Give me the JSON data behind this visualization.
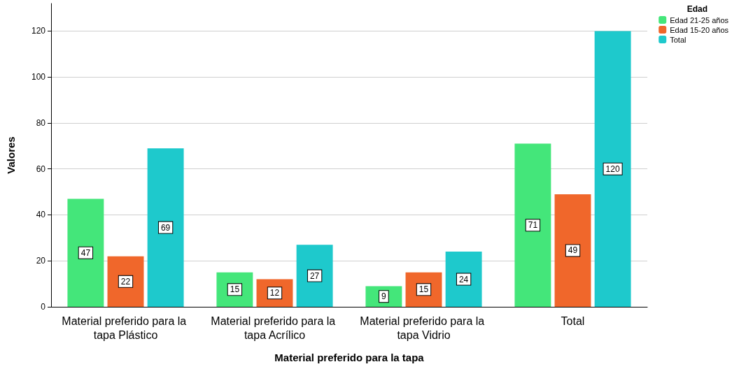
{
  "chart_data": {
    "type": "bar",
    "xlabel": "Material preferido para la tapa",
    "ylabel": "Valores",
    "legend_title": "Edad",
    "categories": [
      "Material preferido para la tapa Plástico",
      "Material preferido para la tapa Acrílico",
      "Material preferido para la tapa Vidrio",
      "Total"
    ],
    "series": [
      {
        "name": "Edad 21-25 años",
        "color": "#44e67a",
        "values": [
          47,
          15,
          9,
          71
        ]
      },
      {
        "name": "Edad 15-20 años",
        "color": "#f0672b",
        "values": [
          22,
          12,
          15,
          49
        ]
      },
      {
        "name": "Total",
        "color": "#1ec9cc",
        "values": [
          69,
          27,
          24,
          120
        ]
      }
    ],
    "ylim": [
      0,
      132
    ],
    "yticks": [
      0,
      20,
      40,
      60,
      80,
      100,
      120
    ],
    "grid": "y",
    "legend": "top right",
    "data_labels": true
  }
}
